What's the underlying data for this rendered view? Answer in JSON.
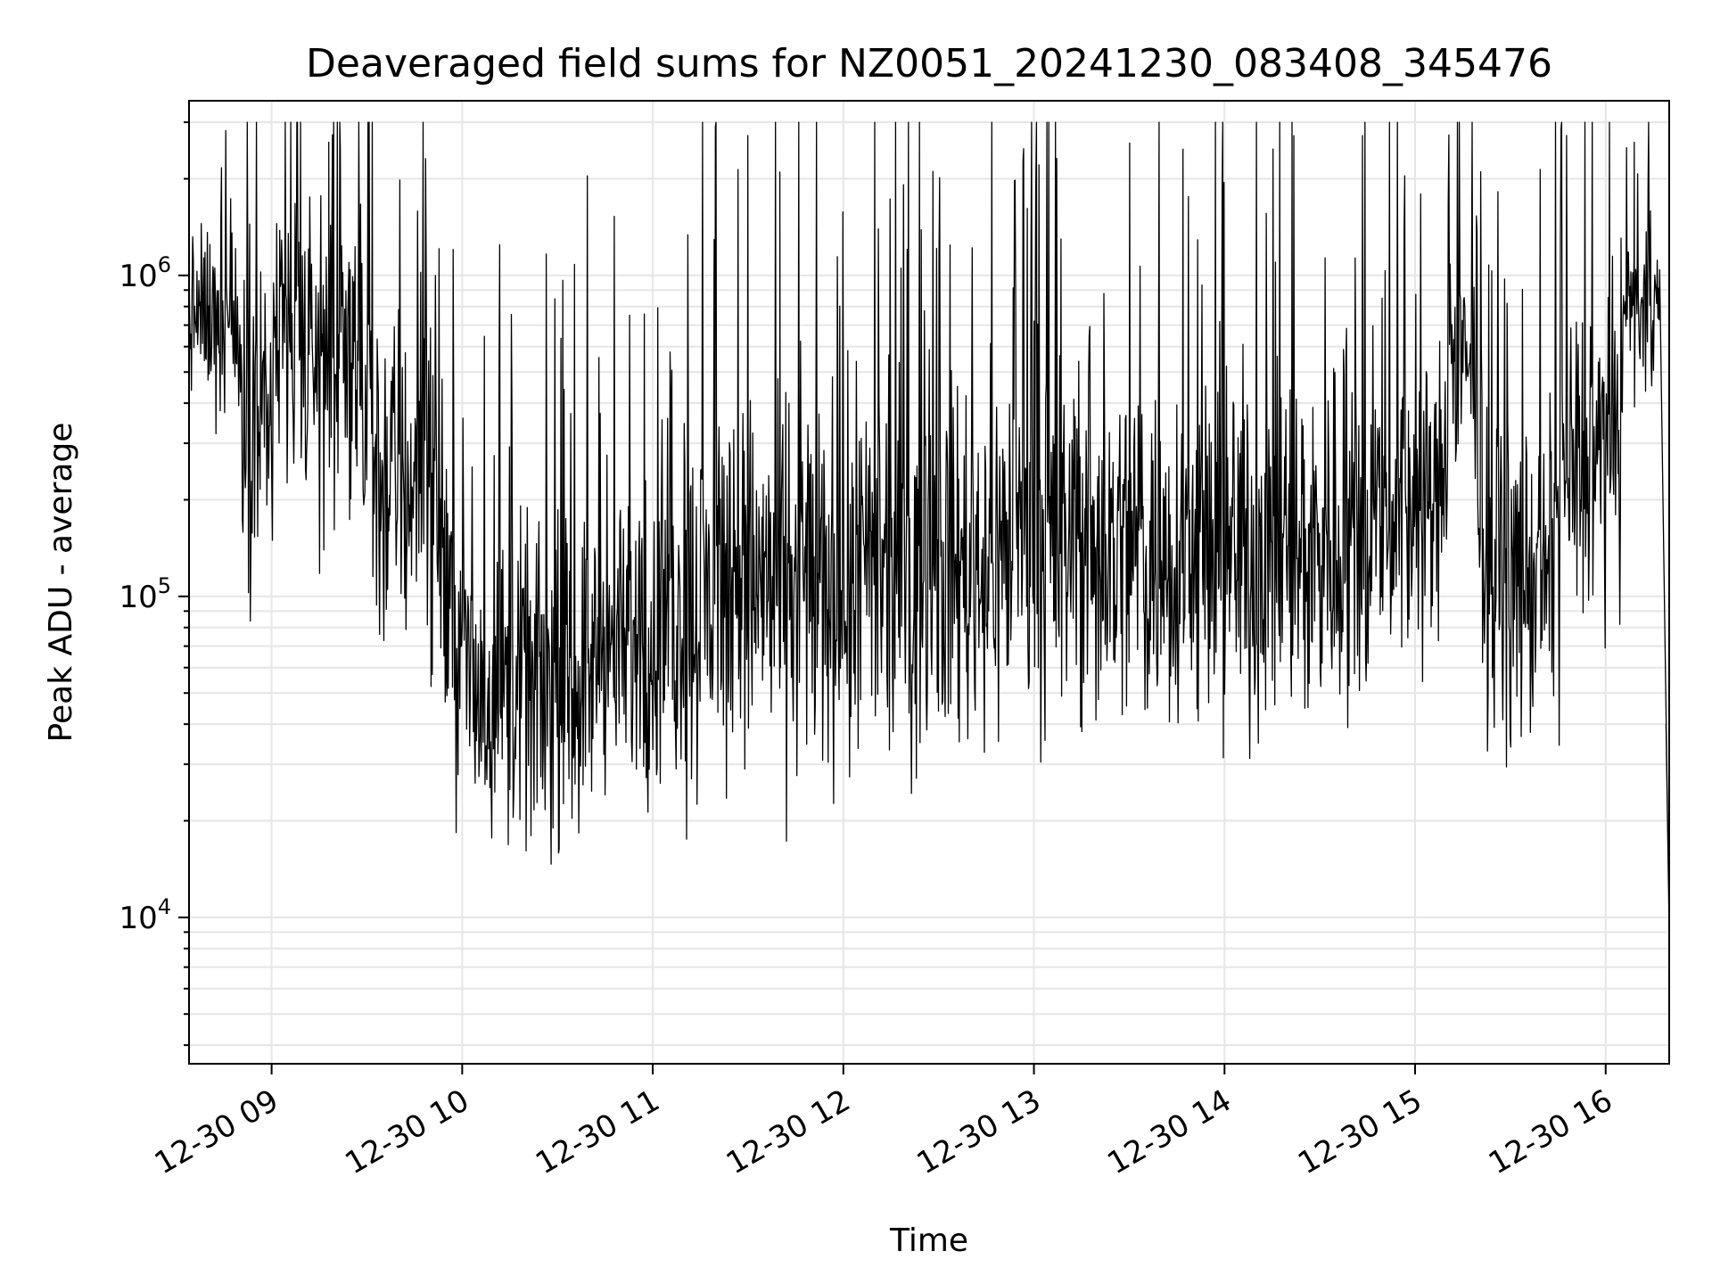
{
  "chart_data": {
    "type": "line",
    "title": "Deaveraged field sums for NZ0051_20241230_083408_345476",
    "xlabel": "Time",
    "ylabel": "Peak ADU - average",
    "x_scale": "time",
    "y_scale": "log",
    "xlim": [
      "2024-12-30 08:34",
      "2024-12-30 16:20"
    ],
    "ylim": [
      3500,
      3500000
    ],
    "grid": true,
    "legend": "none",
    "line_color": "#000000",
    "x_ticks": [
      "2024-12-30 09:00",
      "2024-12-30 10:00",
      "2024-12-30 11:00",
      "2024-12-30 12:00",
      "2024-12-30 13:00",
      "2024-12-30 14:00",
      "2024-12-30 15:00",
      "2024-12-30 16:00"
    ],
    "x_tick_labels": [
      "12-30 09",
      "12-30 10",
      "12-30 11",
      "12-30 12",
      "12-30 13",
      "12-30 14",
      "12-30 15",
      "12-30 16"
    ],
    "y_ticks": [
      {
        "value": 10000,
        "base": "10",
        "exp": "4"
      },
      {
        "value": 100000,
        "base": "10",
        "exp": "5"
      },
      {
        "value": 1000000,
        "base": "10",
        "exp": "6"
      }
    ],
    "series": [
      {
        "segments": [
          {
            "start": "2024-12-30 08:34",
            "end": "2024-12-30 08:50",
            "level": 750000,
            "spread": 0.6
          },
          {
            "start": "2024-12-30 08:50",
            "end": "2024-12-30 09:00",
            "level": 350000,
            "spread": 1.1
          },
          {
            "start": "2024-12-30 09:00",
            "end": "2024-12-30 09:30",
            "level": 550000,
            "spread": 1.1
          },
          {
            "start": "2024-12-30 09:30",
            "end": "2024-12-30 09:55",
            "level": 230000,
            "spread": 1.2
          },
          {
            "start": "2024-12-30 09:55",
            "end": "2024-12-30 10:40",
            "level": 52000,
            "spread": 1.0
          },
          {
            "start": "2024-12-30 10:40",
            "end": "2024-12-30 11:10",
            "level": 68000,
            "spread": 0.9
          },
          {
            "start": "2024-12-30 11:10",
            "end": "2024-12-30 12:30",
            "level": 110000,
            "spread": 1.25
          },
          {
            "start": "2024-12-30 12:30",
            "end": "2024-12-30 14:50",
            "level": 140000,
            "spread": 1.2
          },
          {
            "start": "2024-12-30 14:50",
            "end": "2024-12-30 15:10",
            "level": 190000,
            "spread": 1.0
          },
          {
            "start": "2024-12-30 15:10",
            "end": "2024-12-30 15:20",
            "level": 500000,
            "spread": 0.7
          },
          {
            "start": "2024-12-30 15:20",
            "end": "2024-12-30 15:45",
            "level": 110000,
            "spread": 1.0
          },
          {
            "start": "2024-12-30 15:45",
            "end": "2024-12-30 16:05",
            "level": 270000,
            "spread": 1.1
          },
          {
            "start": "2024-12-30 16:05",
            "end": "2024-12-30 16:17",
            "level": 800000,
            "spread": 0.6
          }
        ],
        "notable_points": [
          {
            "x": "2024-12-30 09:18",
            "y": 2600000
          },
          {
            "x": "2024-12-30 11:40",
            "y": 2100000
          },
          {
            "x": "2024-12-30 16:09",
            "y": 2600000
          },
          {
            "x": "2024-12-30 10:15",
            "y": 25000
          },
          {
            "x": "2024-12-30 16:20",
            "y": 9000
          }
        ]
      }
    ]
  }
}
